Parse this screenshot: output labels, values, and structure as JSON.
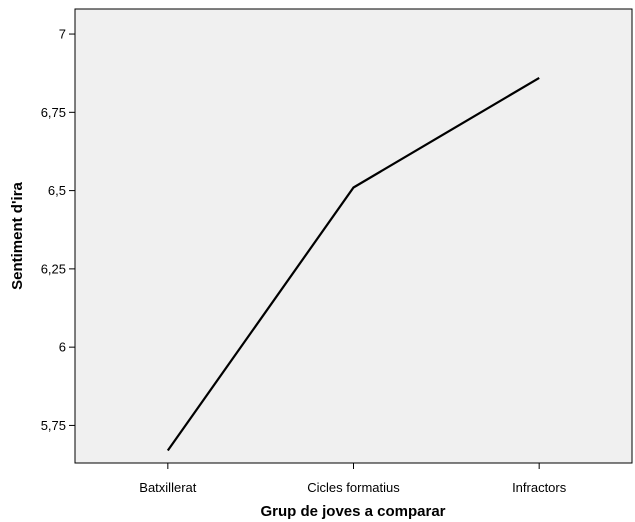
{
  "chart_data": {
    "type": "line",
    "title": "",
    "xlabel": "Grup de joves a comparar",
    "ylabel": "Sentiment d'ira",
    "categories": [
      "Batxillerat",
      "Cicles formatius",
      "Infractors"
    ],
    "series": [
      {
        "values": [
          5.67,
          6.51,
          6.86
        ]
      }
    ],
    "ylim": [
      5.63,
      7.08
    ],
    "yticks": [
      {
        "value": 5.75,
        "label": "5,75"
      },
      {
        "value": 6,
        "label": "6"
      },
      {
        "value": 6.25,
        "label": "6,25"
      },
      {
        "value": 6.5,
        "label": "6,5"
      },
      {
        "value": 6.75,
        "label": "6,75"
      },
      {
        "value": 7,
        "label": "7"
      }
    ],
    "grid": false,
    "legend": "none",
    "colors": {
      "plot_background": "#f0f0f0",
      "line": "#000000",
      "axis": "#000000"
    }
  }
}
